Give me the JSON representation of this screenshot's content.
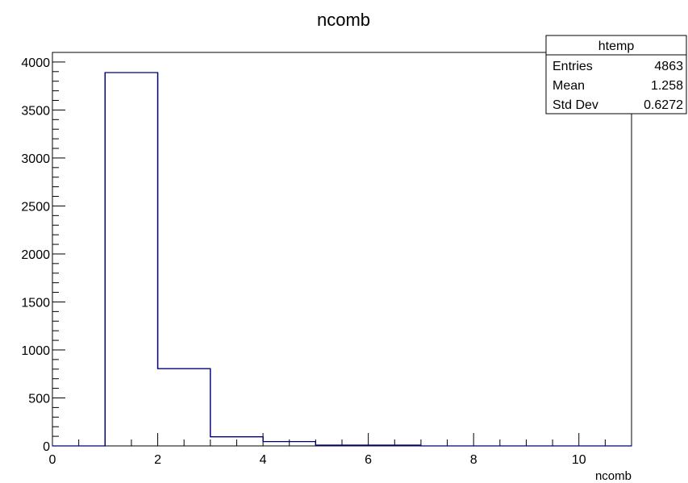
{
  "chart_data": {
    "type": "bar",
    "title": "ncomb",
    "xlabel": "ncomb",
    "ylabel": "",
    "xlim": [
      0,
      11
    ],
    "ylim": [
      0,
      4100
    ],
    "x_ticks": [
      0,
      2,
      4,
      6,
      8,
      10
    ],
    "y_ticks": [
      0,
      500,
      1000,
      1500,
      2000,
      2500,
      3000,
      3500,
      4000
    ],
    "bin_edges": [
      0,
      1,
      2,
      3,
      4,
      5,
      6,
      7,
      8,
      9,
      10,
      11
    ],
    "values": [
      0,
      3890,
      805,
      95,
      45,
      8,
      8,
      0,
      0,
      0,
      0
    ],
    "grid": false,
    "line_color": "#000080",
    "stats_box": {
      "name": "htemp",
      "rows": [
        {
          "label": "Entries",
          "value": "4863"
        },
        {
          "label": "Mean",
          "value": "1.258"
        },
        {
          "label": "Std Dev",
          "value": "0.6272"
        }
      ],
      "placement": "top-right"
    }
  }
}
